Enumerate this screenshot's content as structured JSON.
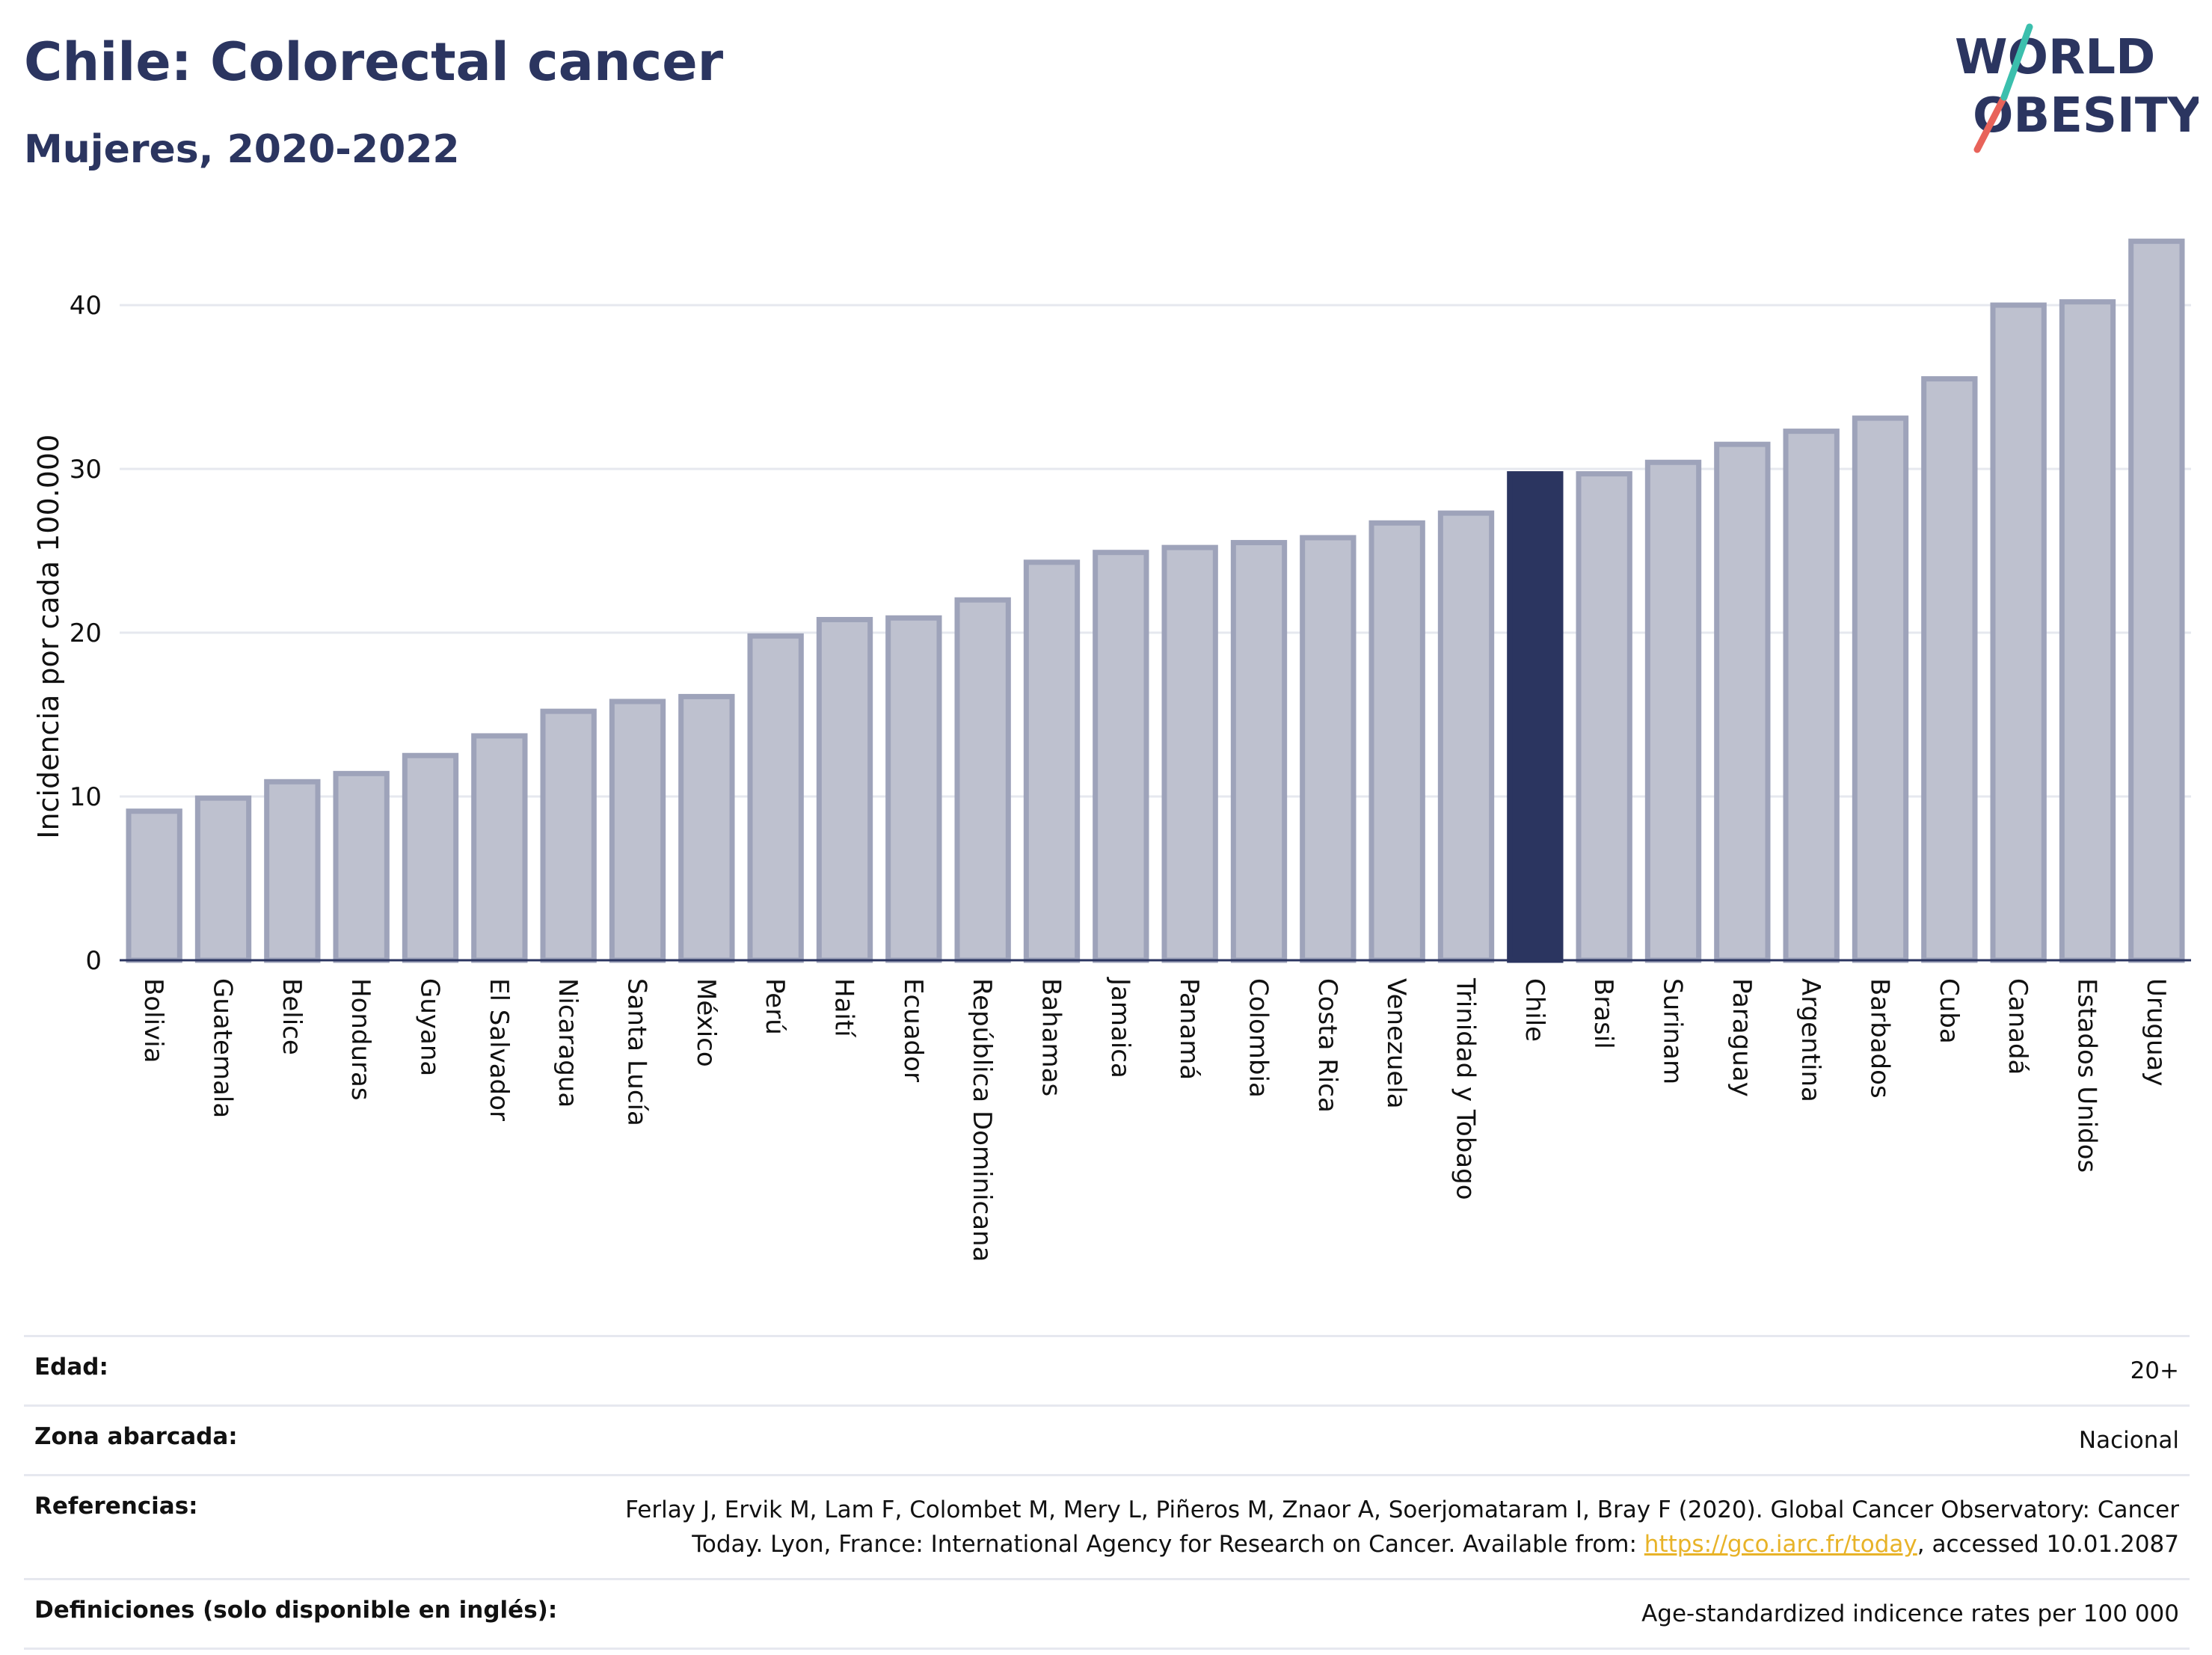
{
  "header": {
    "title": "Chile: Colorectal cancer",
    "subtitle": "Mujeres, 2020-2022"
  },
  "logo": {
    "line1": "WORLD",
    "line2": "OBESITY"
  },
  "colors": {
    "highlight": "#2b3560",
    "bar_fill": "#bec1cf",
    "bar_stroke": "#9ea3ba",
    "grid": "#e6e8ef",
    "logo_slash_teal": "#3bbfad",
    "logo_slash_red": "#e8635a"
  },
  "chart_data": {
    "type": "bar",
    "ylabel": "Incidencia por cada 100.000",
    "ylim": [
      0,
      45
    ],
    "yticks": [
      0,
      10,
      20,
      30,
      40
    ],
    "grid": true,
    "highlight_category": "Chile",
    "categories": [
      "Bolivia",
      "Guatemala",
      "Belice",
      "Honduras",
      "Guyana",
      "El Salvador",
      "Nicaragua",
      "Santa Lucía",
      "México",
      "Perú",
      "Haití",
      "Ecuador",
      "República Dominicana",
      "Bahamas",
      "Jamaica",
      "Panamá",
      "Colombia",
      "Costa Rica",
      "Venezuela",
      "Trinidad y Tobago",
      "Chile",
      "Brasil",
      "Surinam",
      "Paraguay",
      "Argentina",
      "Barbados",
      "Cuba",
      "Canadá",
      "Estados Unidos",
      "Uruguay"
    ],
    "values": [
      9.1,
      9.9,
      10.9,
      11.4,
      12.5,
      13.7,
      15.2,
      15.8,
      16.1,
      19.8,
      20.8,
      20.9,
      22.0,
      24.3,
      24.9,
      25.2,
      25.5,
      25.8,
      26.7,
      27.3,
      29.7,
      29.7,
      30.4,
      31.5,
      32.3,
      33.1,
      35.5,
      40.0,
      40.2,
      43.9
    ]
  },
  "info": {
    "rows": [
      {
        "label": "Edad:",
        "value": "20+"
      },
      {
        "label": "Zona abarcada:",
        "value": "Nacional"
      },
      {
        "label": "Referencias:",
        "value_prefix": "Ferlay J, Ervik M, Lam F, Colombet M, Mery L, Piñeros M, Znaor A, Soerjomataram I, Bray F (2020). Global Cancer Observatory: Cancer Today. Lyon, France: International Agency for Research on Cancer. Available from: ",
        "link": "https://gco.iarc.fr/today",
        "value_suffix": ", accessed 10.01.2087"
      },
      {
        "label": "Definiciones (solo disponible en inglés):",
        "value": "Age-standardized indicence rates per 100 000"
      }
    ]
  }
}
